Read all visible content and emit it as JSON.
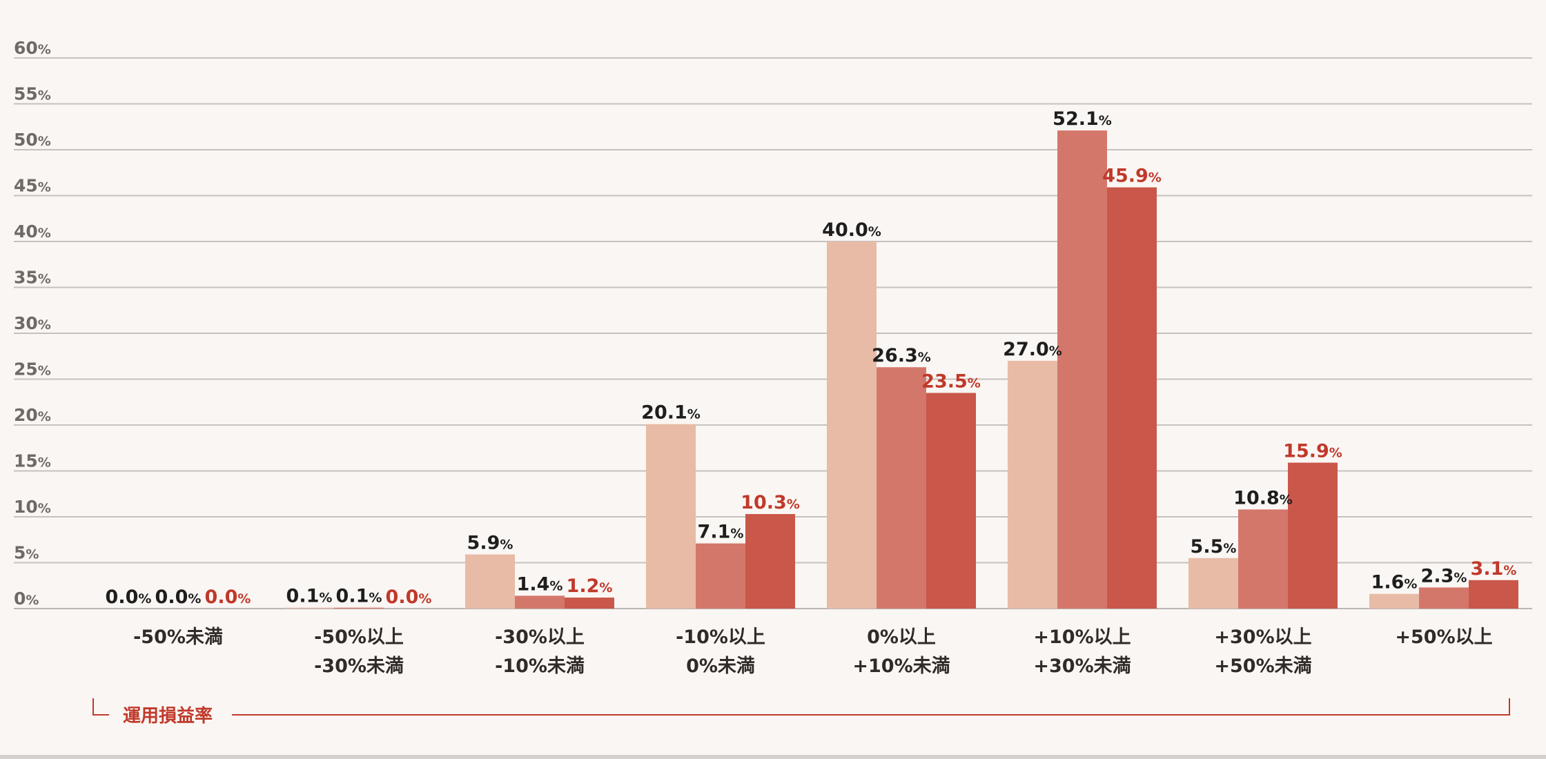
{
  "chart_data": {
    "type": "bar",
    "y_unit": "%",
    "ylim": [
      0,
      60
    ],
    "yticks": [
      0,
      5,
      10,
      15,
      20,
      25,
      30,
      35,
      40,
      45,
      50,
      55,
      60
    ],
    "grid": true,
    "xlabel": "運用損益率",
    "categories": [
      [
        "-50%未満"
      ],
      [
        "-50%以上",
        "-30%未満"
      ],
      [
        "-30%以上",
        "-10%未満"
      ],
      [
        "-10%以上",
        "0%未満"
      ],
      [
        "0%以上",
        "+10%未満"
      ],
      [
        "+10%以上",
        "+30%未満"
      ],
      [
        "+30%以上",
        "+50%未満"
      ],
      [
        "+50%以上"
      ]
    ],
    "series": [
      {
        "color": "#e8bba6",
        "label_color": "#1e1e1e",
        "values": [
          0.0,
          0.1,
          5.9,
          20.1,
          40.0,
          27.0,
          5.5,
          1.6
        ]
      },
      {
        "color": "#d4776b",
        "label_color": "#1e1e1e",
        "values": [
          0.0,
          0.1,
          1.4,
          7.1,
          26.3,
          52.1,
          10.8,
          2.3
        ]
      },
      {
        "color": "#c9574a",
        "label_color": "#c0392b",
        "values": [
          0.0,
          0.0,
          1.2,
          10.3,
          23.5,
          45.9,
          15.9,
          3.1
        ]
      }
    ]
  }
}
